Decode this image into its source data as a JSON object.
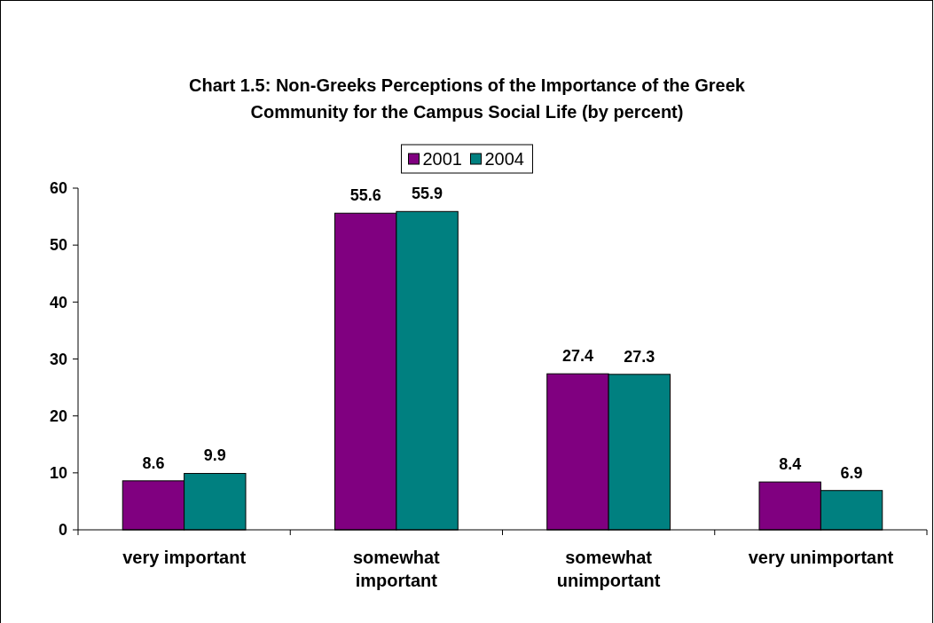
{
  "chart_data": {
    "type": "bar",
    "title": "Chart 1.5: Non-Greeks Perceptions of the Importance of the Greek\nCommunity for the Campus Social Life (by percent)",
    "categories": [
      "very important",
      "somewhat important",
      "somewhat unimportant",
      "very unimportant"
    ],
    "series": [
      {
        "name": "2001",
        "color": "#800080",
        "values": [
          8.6,
          55.6,
          27.4,
          8.4
        ]
      },
      {
        "name": "2004",
        "color": "#008080",
        "values": [
          9.9,
          55.9,
          27.3,
          6.9
        ]
      }
    ],
    "ylim": [
      0,
      60
    ],
    "yticks": [
      0,
      10,
      20,
      30,
      40,
      50,
      60
    ],
    "data_labels": true,
    "legend": "top",
    "grid": false
  }
}
